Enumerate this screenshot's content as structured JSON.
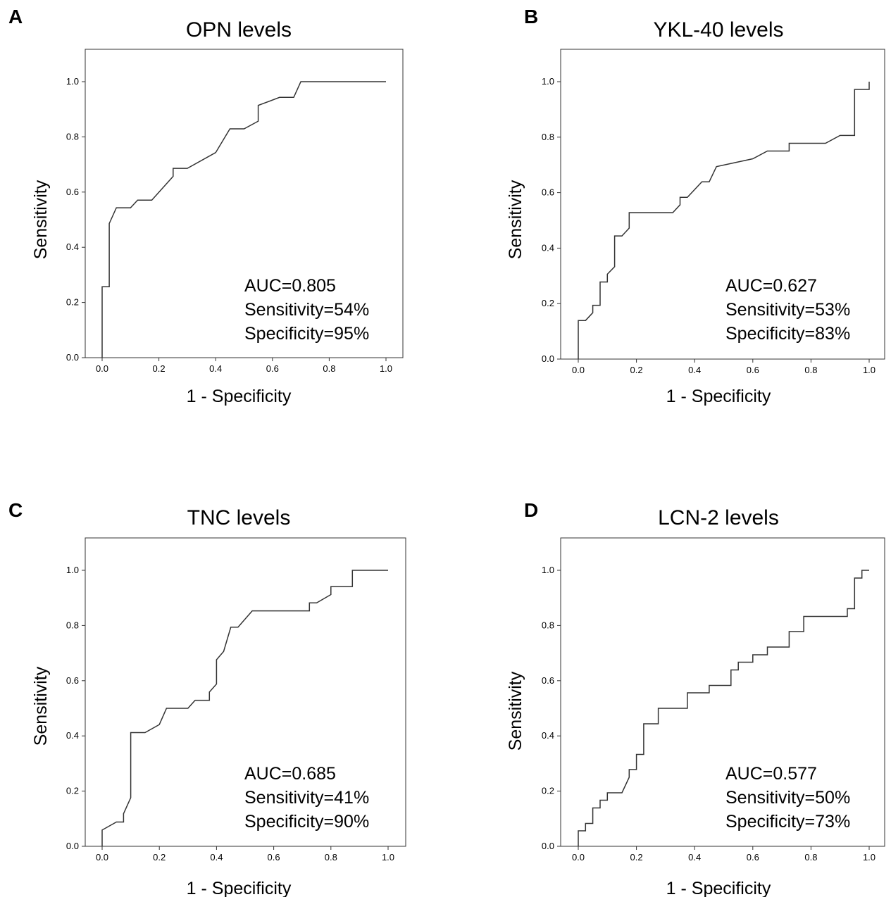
{
  "chart_data": [
    {
      "type": "line",
      "panel": "A",
      "title": "OPN levels",
      "xlabel": "1 - Specificity",
      "ylabel": "Sensitivity",
      "xlim": [
        0,
        1
      ],
      "ylim": [
        0,
        1
      ],
      "xticks": [
        "0.0",
        "0.2",
        "0.4",
        "0.6",
        "0.8",
        "1.0"
      ],
      "yticks": [
        "0.0",
        "0.2",
        "0.4",
        "0.6",
        "0.8",
        "1.0"
      ],
      "annotations": [
        "AUC=0.805",
        "Sensitivity=54%",
        "Specificity=95%"
      ],
      "x": [
        0,
        0,
        0.025,
        0.025,
        0.025,
        0.05,
        0.1,
        0.125,
        0.175,
        0.25,
        0.25,
        0.3,
        0.4,
        0.45,
        0.5,
        0.55,
        0.55,
        0.625,
        0.675,
        0.7,
        0.75,
        1.0
      ],
      "y": [
        0,
        0.257,
        0.257,
        0.486,
        0.486,
        0.543,
        0.543,
        0.571,
        0.571,
        0.657,
        0.686,
        0.686,
        0.743,
        0.829,
        0.829,
        0.857,
        0.914,
        0.943,
        0.943,
        1.0,
        1.0,
        1.0
      ]
    },
    {
      "type": "line",
      "panel": "B",
      "title": "YKL-40 levels",
      "xlabel": "1 - Specificity",
      "ylabel": "Sensitivity",
      "xlim": [
        0,
        1
      ],
      "ylim": [
        0,
        1
      ],
      "xticks": [
        "0.0",
        "0.2",
        "0.4",
        "0.6",
        "0.8",
        "1.0"
      ],
      "yticks": [
        "0.0",
        "0.2",
        "0.4",
        "0.6",
        "0.8",
        "1.0"
      ],
      "annotations": [
        "AUC=0.627",
        "Sensitivity=53%",
        "Specificity=83%"
      ],
      "x": [
        0,
        0,
        0.025,
        0.05,
        0.05,
        0.075,
        0.075,
        0.1,
        0.1,
        0.125,
        0.125,
        0.15,
        0.175,
        0.175,
        0.325,
        0.35,
        0.35,
        0.375,
        0.425,
        0.45,
        0.475,
        0.6,
        0.65,
        0.725,
        0.725,
        0.85,
        0.9,
        0.95,
        0.95,
        1.0,
        1.0
      ],
      "y": [
        0,
        0.139,
        0.139,
        0.167,
        0.194,
        0.194,
        0.278,
        0.278,
        0.306,
        0.333,
        0.444,
        0.444,
        0.472,
        0.528,
        0.528,
        0.556,
        0.583,
        0.583,
        0.639,
        0.639,
        0.694,
        0.722,
        0.75,
        0.75,
        0.778,
        0.778,
        0.806,
        0.806,
        0.972,
        0.972,
        1.0
      ]
    },
    {
      "type": "line",
      "panel": "C",
      "title": "TNC levels",
      "xlabel": "1 - Specificity",
      "ylabel": "Sensitivity",
      "xlim": [
        0,
        1
      ],
      "ylim": [
        0,
        1
      ],
      "xticks": [
        "0.0",
        "0.2",
        "0.4",
        "0.6",
        "0.8",
        "1.0"
      ],
      "yticks": [
        "0.0",
        "0.2",
        "0.4",
        "0.6",
        "0.8",
        "1.0"
      ],
      "annotations": [
        "AUC=0.685",
        "Sensitivity=41%",
        "Specificity=90%"
      ],
      "x": [
        0,
        0,
        0.05,
        0.075,
        0.075,
        0.1,
        0.1,
        0.15,
        0.2,
        0.225,
        0.3,
        0.325,
        0.375,
        0.375,
        0.4,
        0.4,
        0.425,
        0.45,
        0.475,
        0.525,
        0.725,
        0.725,
        0.75,
        0.8,
        0.8,
        0.875,
        0.875,
        1.0
      ],
      "y": [
        0,
        0.059,
        0.088,
        0.088,
        0.118,
        0.176,
        0.412,
        0.412,
        0.441,
        0.5,
        0.5,
        0.529,
        0.529,
        0.559,
        0.588,
        0.676,
        0.706,
        0.794,
        0.794,
        0.853,
        0.853,
        0.882,
        0.882,
        0.912,
        0.941,
        0.941,
        1.0,
        1.0
      ]
    },
    {
      "type": "line",
      "panel": "D",
      "title": "LCN-2 levels",
      "xlabel": "1 - Specificity",
      "ylabel": "Sensitivity",
      "xlim": [
        0,
        1
      ],
      "ylim": [
        0,
        1
      ],
      "xticks": [
        "0.0",
        "0.2",
        "0.4",
        "0.6",
        "0.8",
        "1.0"
      ],
      "yticks": [
        "0.0",
        "0.2",
        "0.4",
        "0.6",
        "0.8",
        "1.0"
      ],
      "annotations": [
        "AUC=0.577",
        "Sensitivity=50%",
        "Specificity=73%"
      ],
      "x": [
        0,
        0,
        0.025,
        0.025,
        0.05,
        0.05,
        0.075,
        0.075,
        0.1,
        0.1,
        0.15,
        0.175,
        0.175,
        0.2,
        0.2,
        0.225,
        0.225,
        0.275,
        0.275,
        0.375,
        0.375,
        0.45,
        0.45,
        0.525,
        0.525,
        0.55,
        0.55,
        0.6,
        0.6,
        0.65,
        0.65,
        0.725,
        0.725,
        0.775,
        0.775,
        0.925,
        0.925,
        0.95,
        0.95,
        0.975,
        0.975,
        1.0
      ],
      "y": [
        0,
        0.056,
        0.056,
        0.083,
        0.083,
        0.139,
        0.139,
        0.167,
        0.167,
        0.194,
        0.194,
        0.25,
        0.278,
        0.278,
        0.333,
        0.333,
        0.444,
        0.444,
        0.5,
        0.5,
        0.556,
        0.556,
        0.583,
        0.583,
        0.639,
        0.639,
        0.667,
        0.667,
        0.694,
        0.694,
        0.722,
        0.722,
        0.778,
        0.778,
        0.833,
        0.833,
        0.861,
        0.861,
        0.972,
        0.972,
        1.0,
        1.0
      ]
    }
  ]
}
